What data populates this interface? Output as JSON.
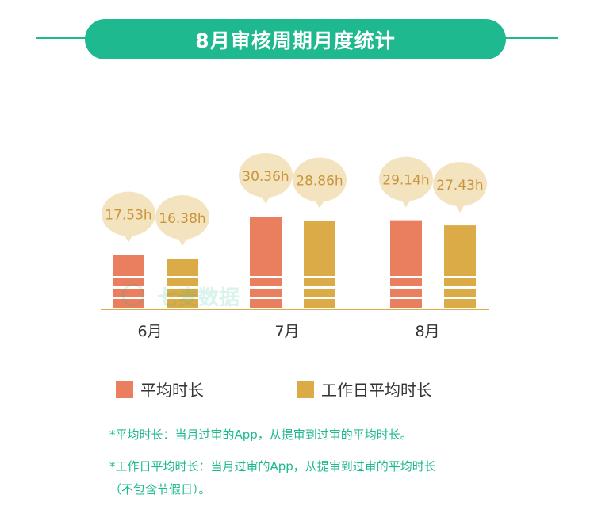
{
  "title": "8月审核周期月度统计",
  "colors": {
    "accent": "#1fb98f",
    "avg": "#e97f5f",
    "workday": "#dbab47",
    "bubble": "#f4e3bf",
    "bubble_text": "#c9953a",
    "axis": "#dbab47"
  },
  "chart_data": {
    "type": "bar",
    "categories": [
      "6月",
      "7月",
      "8月"
    ],
    "series": [
      {
        "name": "平均时长",
        "values": [
          17.53,
          30.36,
          29.14
        ],
        "labels": [
          "17.53h",
          "30.36h",
          "29.14h"
        ]
      },
      {
        "name": "工作日平均时长",
        "values": [
          16.38,
          28.86,
          27.43
        ],
        "labels": [
          "16.38h",
          "28.86h",
          "27.43h"
        ]
      }
    ],
    "title": "",
    "xlabel": "",
    "ylabel": "",
    "ylim": [
      0,
      30.36
    ],
    "grid": false,
    "legend": "bottom"
  },
  "legend": {
    "avg_label": "平均时长",
    "workday_label": "工作日平均时长"
  },
  "watermark": "七麦数据",
  "notes": {
    "line1": "*平均时长：当月过审的App，从提审到过审的平均时长。",
    "line2": "*工作日平均时长：当月过审的App，从提审到过审的平均时长",
    "line3": "（不包含节假日）。"
  }
}
